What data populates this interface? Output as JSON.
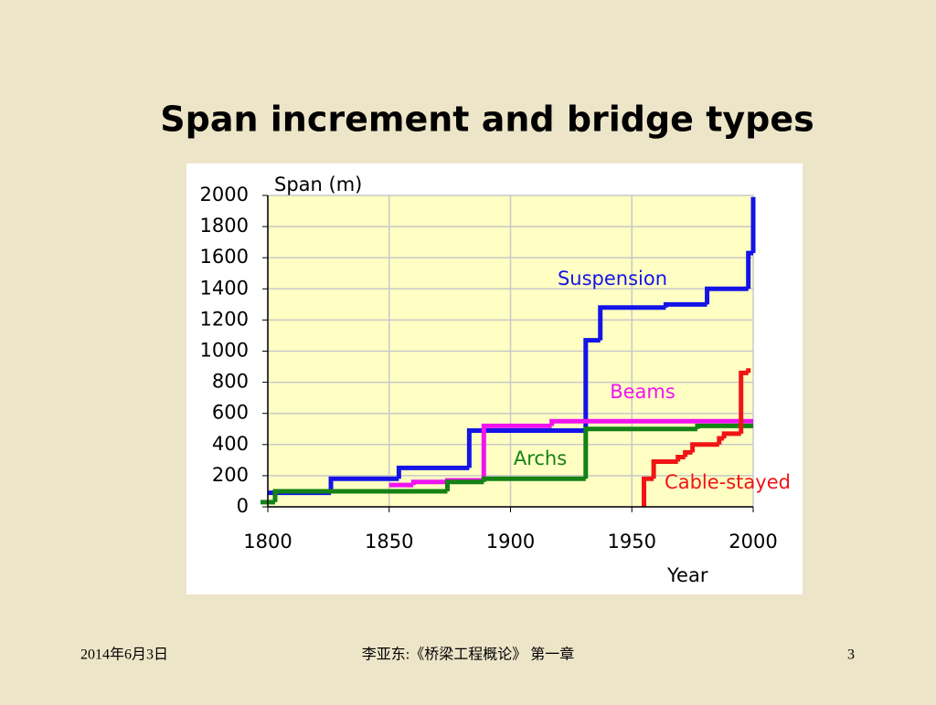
{
  "slide_title": "Span increment and bridge types",
  "chart_data": {
    "type": "step",
    "y_label": "Span (m)",
    "x_label": "Year",
    "xlim": [
      1800,
      2000
    ],
    "xticks": [
      1800,
      1850,
      1900,
      1950,
      2000
    ],
    "ylim": [
      0,
      2000
    ],
    "yticks": [
      0,
      200,
      400,
      600,
      800,
      1000,
      1200,
      1400,
      1600,
      1800,
      2000
    ],
    "grid": true,
    "series": [
      {
        "name": "Suspension",
        "color": "#1414e6",
        "x": [
          1800,
          1826,
          1854,
          1883,
          1931,
          1937,
          1964,
          1981,
          1998,
          2000
        ],
        "values": [
          90,
          180,
          250,
          490,
          1070,
          1280,
          1300,
          1400,
          1630,
          1990
        ]
      },
      {
        "name": "Beams",
        "color": "#f014f0",
        "x": [
          1850,
          1860,
          1874,
          1889,
          1917,
          2000
        ],
        "values": [
          140,
          160,
          170,
          520,
          550,
          550
        ]
      },
      {
        "name": "Archs",
        "color": "#148214",
        "x": [
          1797,
          1803,
          1874,
          1889,
          1931,
          1977,
          2000
        ],
        "values": [
          30,
          100,
          160,
          180,
          500,
          520,
          520
        ]
      },
      {
        "name": "Cable-stayed",
        "color": "#f01414",
        "x": [
          1955,
          1955,
          1959,
          1969,
          1972,
          1975,
          1986,
          1988,
          1995,
          1998
        ],
        "values": [
          0,
          180,
          290,
          320,
          350,
          400,
          440,
          470,
          860,
          890
        ]
      }
    ]
  },
  "footer": {
    "date": "2014年6月3日",
    "course": "李亚东:《桥梁工程概论》 第一章",
    "page": "3"
  }
}
